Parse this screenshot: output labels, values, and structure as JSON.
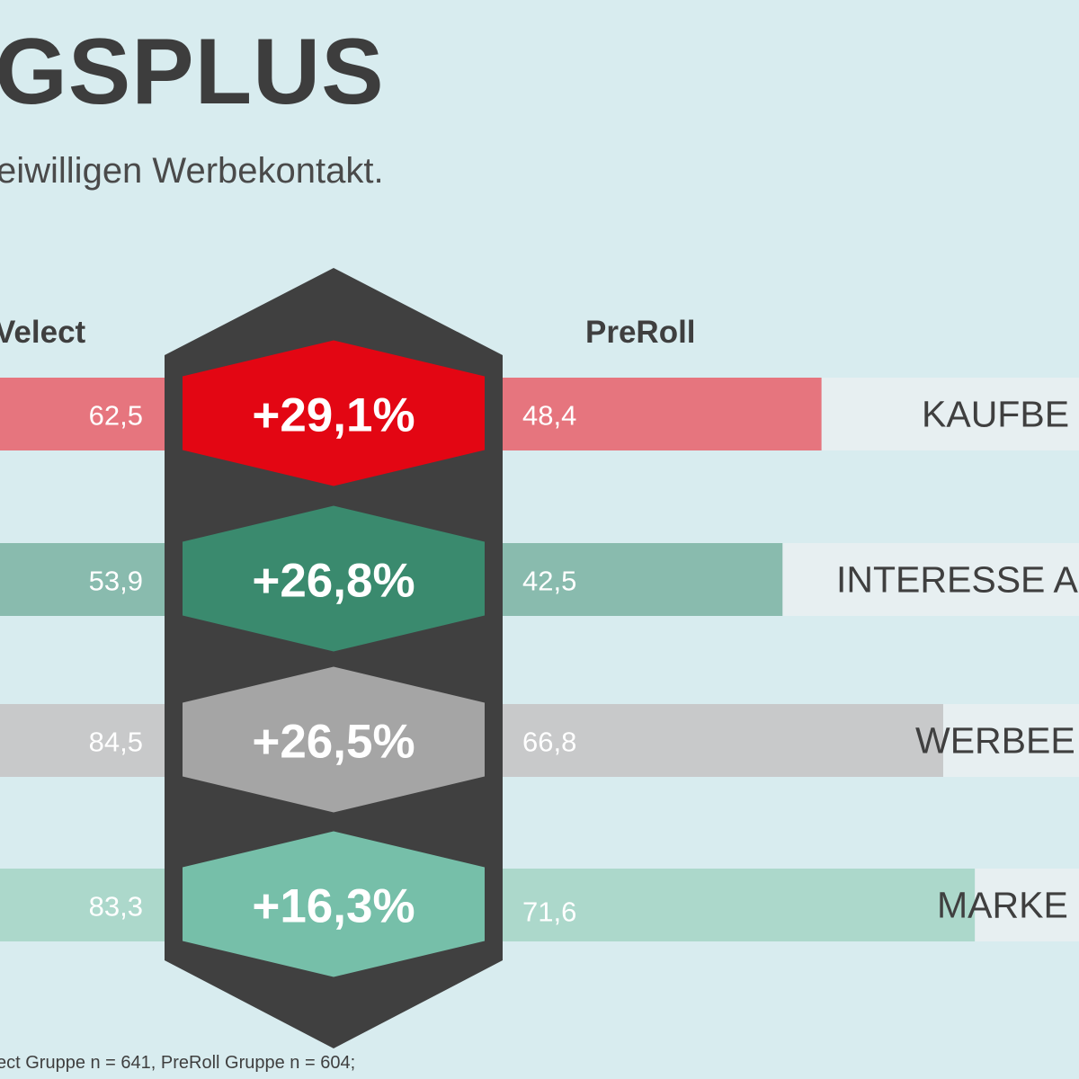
{
  "header": {
    "title": "GSPLUS",
    "subtitle": "eiwilligen Werbekontakt."
  },
  "columns": {
    "left": "Velect",
    "right": "PreRoll"
  },
  "footnote": "ect Gruppe n = 641, PreRoll Gruppe n = 604;",
  "chart_data": {
    "type": "bar",
    "categories": [
      "KAUFBE",
      "INTERESSE A",
      "WERBEE",
      "MARKE"
    ],
    "series": [
      {
        "name": "Velect",
        "values": [
          62.5,
          53.9,
          84.5,
          83.3
        ],
        "labels": [
          "62,5",
          "53,9",
          "84,5",
          "83,3"
        ]
      },
      {
        "name": "PreRoll",
        "values": [
          48.4,
          42.5,
          66.8,
          71.6
        ],
        "labels": [
          "48,4",
          "42,5",
          "66,8",
          "71,6"
        ]
      }
    ],
    "uplift_labels": [
      "+29,1%",
      "+26,8%",
      "+26,5%",
      "+16,3%"
    ],
    "colors": {
      "hexagon": [
        "#e30613",
        "#3a8a6e",
        "#a5a5a5",
        "#76bfa9"
      ],
      "bar": [
        "#e6757e",
        "#89bbae",
        "#c8c9ca",
        "#acd8cb"
      ],
      "label_box": "#e7eff1",
      "center_column": "#404040"
    }
  }
}
